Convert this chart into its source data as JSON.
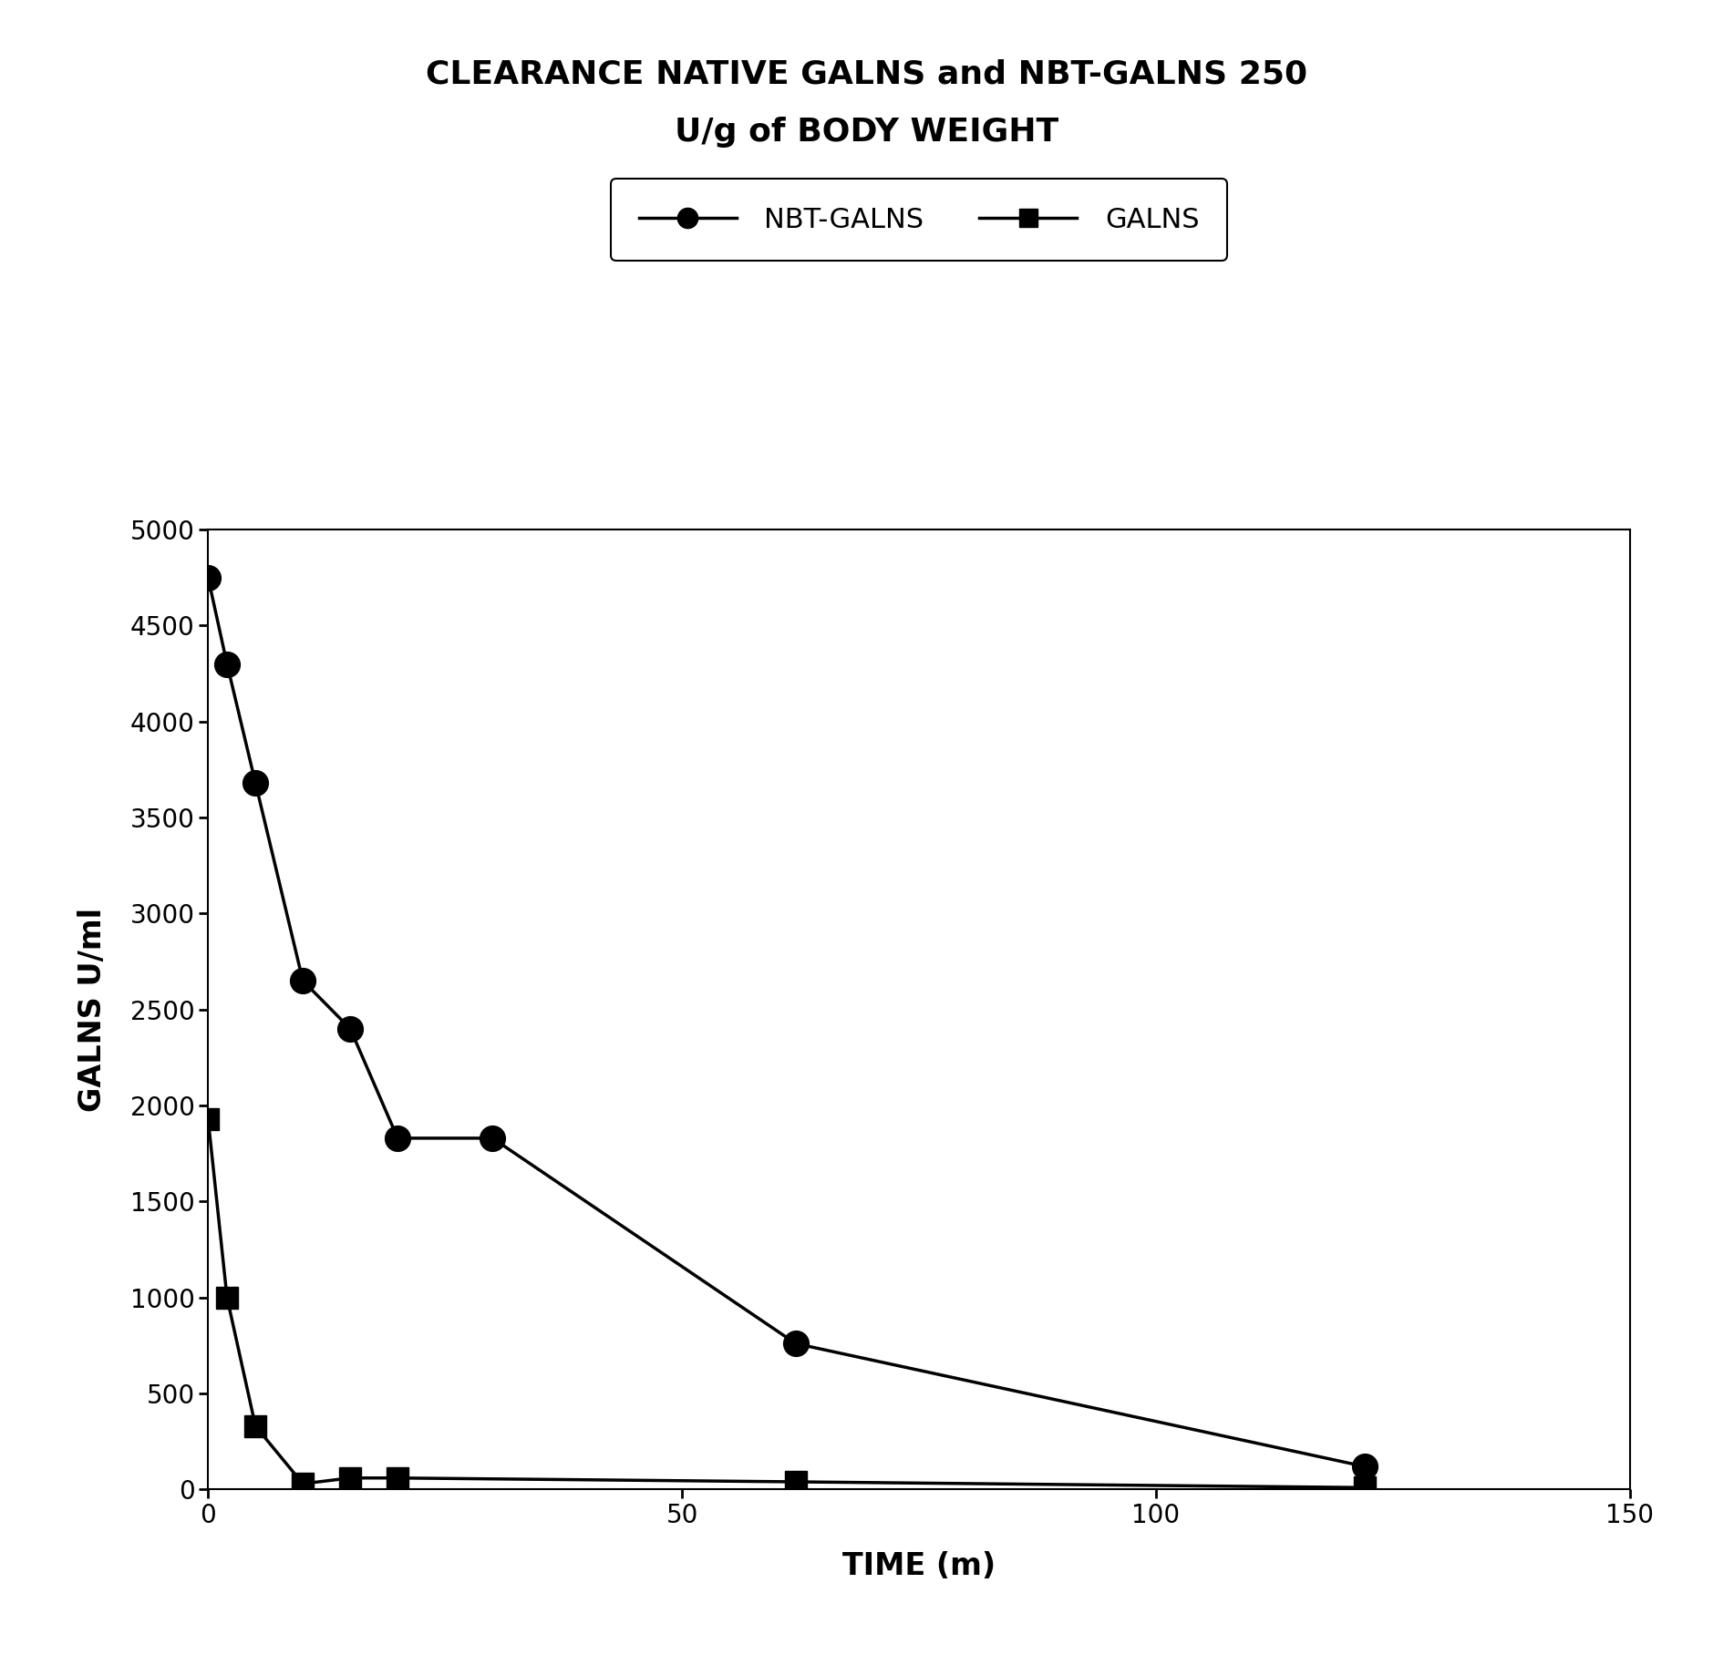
{
  "title_line1": "CLEARANCE NATIVE GALNS and NBT-GALNS 250",
  "title_line2": "U/g of BODY WEIGHT",
  "xlabel": "TIME (m)",
  "ylabel": "GALNS U/ml",
  "xlim": [
    0,
    150
  ],
  "ylim": [
    0,
    5000
  ],
  "yticks": [
    0,
    500,
    1000,
    1500,
    2000,
    2500,
    3000,
    3500,
    4000,
    4500,
    5000
  ],
  "xticks": [
    0,
    50,
    100,
    150
  ],
  "nbt_galns_x": [
    0,
    2,
    5,
    10,
    15,
    20,
    30,
    62,
    122
  ],
  "nbt_galns_y": [
    4750,
    4300,
    3680,
    2650,
    2400,
    1830,
    1830,
    760,
    120
  ],
  "galns_x": [
    0,
    2,
    5,
    10,
    15,
    20,
    62,
    122
  ],
  "galns_y": [
    1930,
    1000,
    330,
    30,
    60,
    60,
    40,
    10
  ],
  "line_color": "#000000",
  "marker_circle_color": "#000000",
  "marker_square_color": "#000000",
  "background_color": "#ffffff",
  "title_fontsize": 26,
  "axis_label_fontsize": 24,
  "tick_fontsize": 20,
  "legend_fontsize": 22
}
